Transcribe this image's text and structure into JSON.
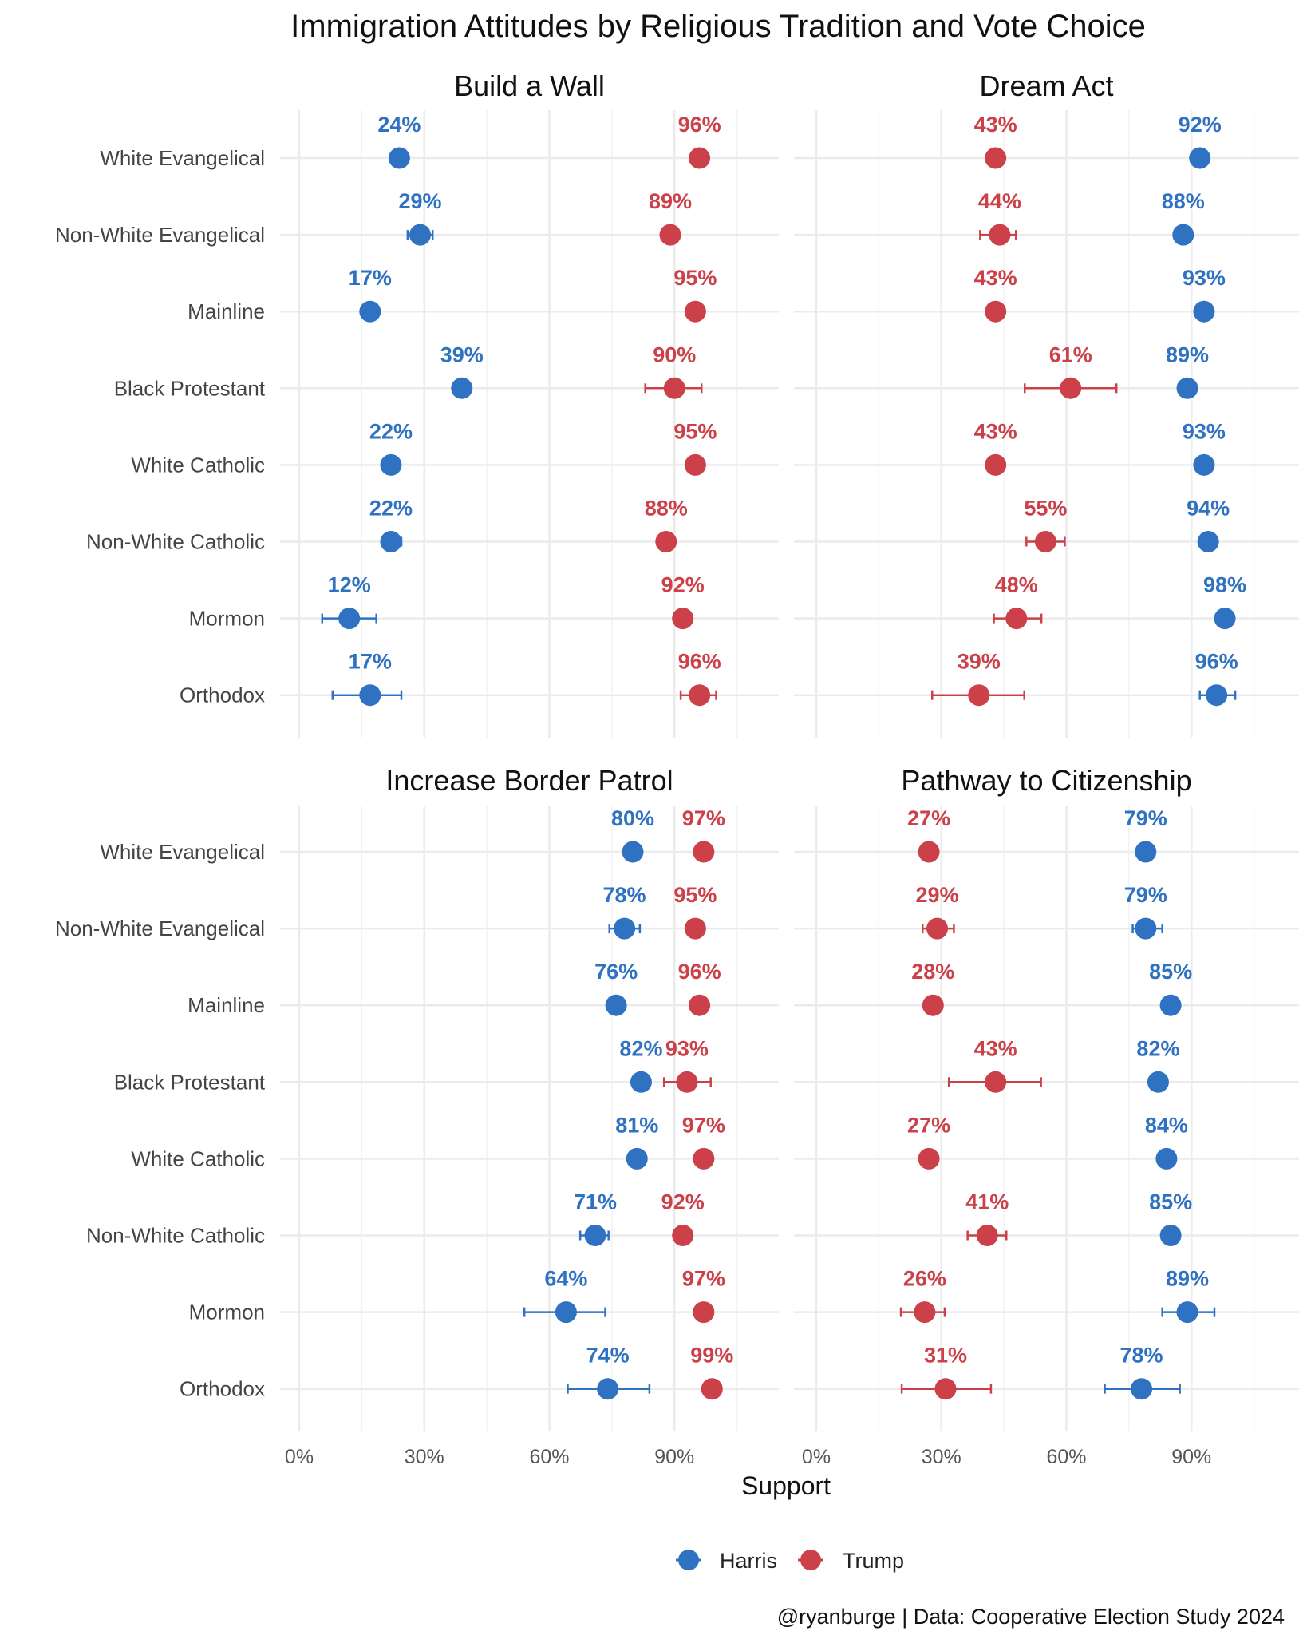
{
  "chart_data": {
    "type": "scatter",
    "title": "Immigration Attitudes by Religious Tradition and Vote Choice",
    "xlabel": "Support",
    "xticks": [
      "0%",
      "30%",
      "60%",
      "90%"
    ],
    "xtick_values": [
      0,
      30,
      60,
      90
    ],
    "xlim": [
      -4.5,
      115
    ],
    "categories": [
      "White Evangelical",
      "Non-White Evangelical",
      "Mainline",
      "Black Protestant",
      "White Catholic",
      "Non-White Catholic",
      "Mormon",
      "Orthodox"
    ],
    "legend": {
      "position": "bottom",
      "entries": [
        {
          "name": "Harris",
          "color": "#2f72c2"
        },
        {
          "name": "Trump",
          "color": "#cc4149"
        }
      ]
    },
    "caption": "@ryanburge | Data: Cooperative Election Study 2024",
    "panels": [
      {
        "title": "Build a Wall",
        "series": [
          {
            "name": "Harris",
            "values": [
              24,
              29,
              17,
              39,
              22,
              22,
              12,
              17
            ],
            "ci": [
              [
                23,
                25
              ],
              [
                26,
                32
              ],
              [
                16,
                18
              ],
              [
                37,
                41
              ],
              [
                21,
                23
              ],
              [
                20,
                24.5
              ],
              [
                5.5,
                18.5
              ],
              [
                8,
                24.5
              ]
            ]
          },
          {
            "name": "Trump",
            "values": [
              96,
              89,
              95,
              90,
              95,
              88,
              92,
              96
            ],
            "ci": [
              [
                95,
                97
              ],
              [
                88,
                90
              ],
              [
                94,
                96
              ],
              [
                83,
                96.5
              ],
              [
                94,
                96
              ],
              [
                86.5,
                89.5
              ],
              [
                90.5,
                93.5
              ],
              [
                91.5,
                100
              ]
            ]
          }
        ]
      },
      {
        "title": "Dream Act",
        "series": [
          {
            "name": "Harris",
            "values": [
              92,
              88,
              93,
              89,
              93,
              94,
              98,
              96
            ],
            "ci": [
              [
                91,
                93
              ],
              [
                86.5,
                89.5
              ],
              [
                92,
                94
              ],
              [
                88,
                90
              ],
              [
                92,
                94
              ],
              [
                93,
                95
              ],
              [
                96.5,
                99.5
              ],
              [
                92,
                100.5
              ]
            ]
          },
          {
            "name": "Trump",
            "values": [
              43,
              44,
              43,
              61,
              43,
              55,
              48,
              39
            ],
            "ci": [
              [
                42,
                44
              ],
              [
                39.3,
                47.9
              ],
              [
                42,
                44
              ],
              [
                50,
                72
              ],
              [
                42,
                44
              ],
              [
                50.4,
                59.6
              ],
              [
                42.6,
                54
              ],
              [
                27.8,
                49.9
              ]
            ]
          }
        ]
      },
      {
        "title": "Increase Border Patrol",
        "series": [
          {
            "name": "Harris",
            "values": [
              80,
              78,
              76,
              82,
              81,
              71,
              64,
              74
            ],
            "ci": [
              [
                79,
                81
              ],
              [
                74.4,
                81.7
              ],
              [
                75,
                77
              ],
              [
                80.5,
                83.5
              ],
              [
                80,
                82
              ],
              [
                67.4,
                74.2
              ],
              [
                54,
                73.4
              ],
              [
                64.4,
                84
              ]
            ]
          },
          {
            "name": "Trump",
            "values": [
              97,
              95,
              96,
              93,
              97,
              92,
              97,
              99
            ],
            "ci": [
              [
                96,
                98
              ],
              [
                94,
                96
              ],
              [
                95,
                97
              ],
              [
                87.5,
                98.7
              ],
              [
                96,
                98
              ],
              [
                91,
                93
              ],
              [
                96,
                98
              ],
              [
                97.5,
                100.5
              ]
            ]
          }
        ]
      },
      {
        "title": "Pathway to Citizenship",
        "series": [
          {
            "name": "Harris",
            "values": [
              79,
              79,
              85,
              82,
              84,
              85,
              89,
              78
            ],
            "ci": [
              [
                78,
                80
              ],
              [
                75.9,
                83
              ],
              [
                84,
                86
              ],
              [
                80.5,
                83.5
              ],
              [
                83,
                85
              ],
              [
                83.5,
                86.5
              ],
              [
                83,
                95.5
              ],
              [
                69.2,
                87.2
              ]
            ]
          },
          {
            "name": "Trump",
            "values": [
              27,
              29,
              28,
              43,
              27,
              41,
              26,
              31
            ],
            "ci": [
              [
                26,
                28
              ],
              [
                25.5,
                33
              ],
              [
                27,
                29
              ],
              [
                31.8,
                53.9
              ],
              [
                26,
                28
              ],
              [
                36.3,
                45.6
              ],
              [
                20.3,
                30.8
              ],
              [
                20.5,
                41.9
              ]
            ]
          }
        ]
      }
    ]
  }
}
